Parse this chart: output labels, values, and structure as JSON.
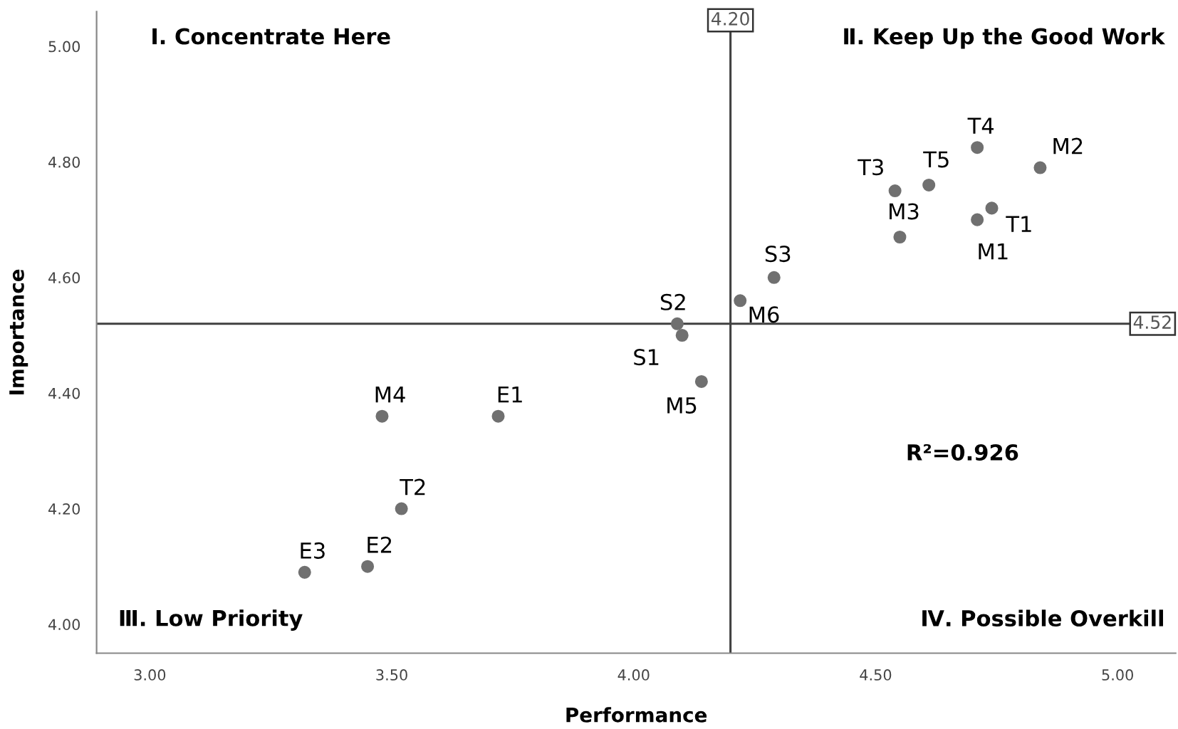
{
  "chart_data": {
    "type": "scatter",
    "xlabel": "Performance",
    "ylabel": "Importance",
    "x": [
      4.71,
      4.84,
      4.61,
      4.54,
      4.74,
      4.71,
      4.55,
      4.29,
      4.22,
      4.09,
      4.1,
      4.14,
      3.48,
      3.72,
      3.52,
      3.45,
      3.32
    ],
    "series": [
      {
        "color": "#707070",
        "values": [
          4.825,
          4.79,
          4.76,
          4.75,
          4.72,
          4.7,
          4.67,
          4.6,
          4.56,
          4.52,
          4.5,
          4.42,
          4.36,
          4.36,
          4.2,
          4.1,
          4.09
        ]
      }
    ],
    "marker": "circle",
    "grid": false,
    "xlim": [
      2.89,
      5.12
    ],
    "ylim": [
      3.95,
      5.06
    ],
    "xticks": [
      {
        "value": 3,
        "label": "3.00"
      },
      {
        "value": 3.5,
        "label": "3.50"
      },
      {
        "value": 4,
        "label": "4.00"
      },
      {
        "value": 4.5,
        "label": "4.50"
      },
      {
        "value": 5,
        "label": "5.00"
      }
    ],
    "yticks": [
      {
        "value": 4,
        "label": "4.00"
      },
      {
        "value": 4.2,
        "label": "4.20"
      },
      {
        "value": 4.4,
        "label": "4.40"
      },
      {
        "value": 4.6,
        "label": "4.60"
      },
      {
        "value": 4.8,
        "label": "4.80"
      },
      {
        "value": 5,
        "label": "5.00"
      }
    ],
    "ref_lines": [
      {
        "axis": "x",
        "value": 4.2,
        "label": "4.20",
        "color": "#404040"
      },
      {
        "axis": "y",
        "value": 4.52,
        "label": "4.52",
        "color": "#404040"
      }
    ],
    "annotations": [
      {
        "text": "T4",
        "x": 4.71,
        "y": 4.825
      },
      {
        "text": "M2",
        "x": 4.84,
        "y": 4.79
      },
      {
        "text": "T5",
        "x": 4.61,
        "y": 4.76
      },
      {
        "text": "T3",
        "x": 4.54,
        "y": 4.75
      },
      {
        "text": "T1",
        "x": 4.74,
        "y": 4.72
      },
      {
        "text": "M1",
        "x": 4.71,
        "y": 4.7
      },
      {
        "text": "M3",
        "x": 4.55,
        "y": 4.67
      },
      {
        "text": "S3",
        "x": 4.29,
        "y": 4.6
      },
      {
        "text": "M6",
        "x": 4.22,
        "y": 4.56
      },
      {
        "text": "S2",
        "x": 4.09,
        "y": 4.52
      },
      {
        "text": "S1",
        "x": 4.1,
        "y": 4.5
      },
      {
        "text": "M5",
        "x": 4.14,
        "y": 4.42
      },
      {
        "text": "M4",
        "x": 3.48,
        "y": 4.36
      },
      {
        "text": "E1",
        "x": 3.72,
        "y": 4.36
      },
      {
        "text": "T2",
        "x": 3.52,
        "y": 4.2
      },
      {
        "text": "E2",
        "x": 3.45,
        "y": 4.1
      },
      {
        "text": "E3",
        "x": 3.32,
        "y": 4.09
      },
      "Ⅰ. Concentrate Here",
      "Ⅱ. Keep Up the Good Work",
      "Ⅲ. Low Priority",
      "Ⅳ. Possible Overkill",
      "R²=0.926"
    ]
  }
}
